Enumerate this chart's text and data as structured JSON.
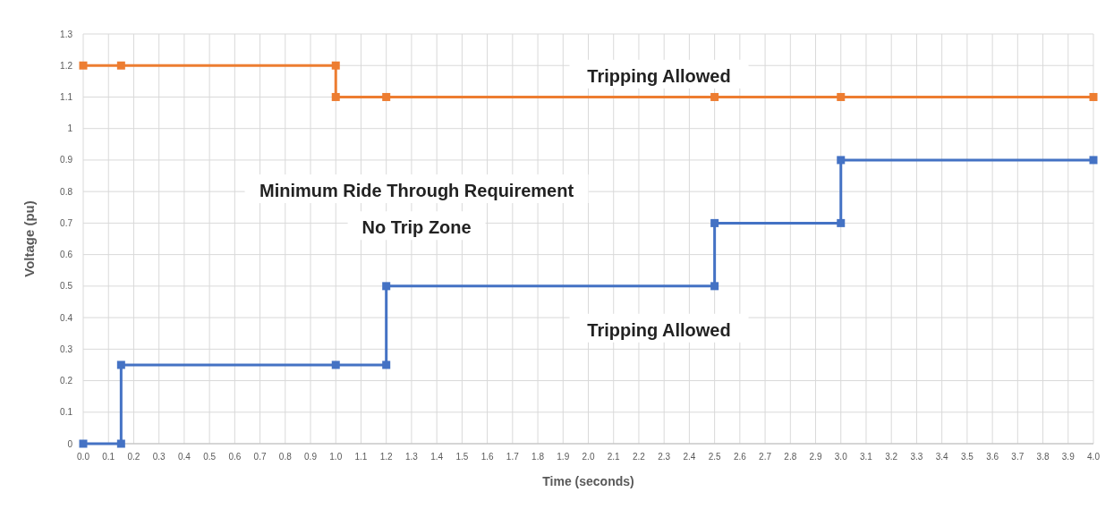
{
  "chart_data": {
    "type": "line",
    "xlabel": "Time (seconds)",
    "ylabel": "Voltage (pu)",
    "xlim": [
      0,
      4
    ],
    "xticks": [
      {
        "value": 0,
        "label": "0.0"
      },
      {
        "value": 0.1,
        "label": "0.1"
      },
      {
        "value": 0.2,
        "label": "0.2"
      },
      {
        "value": 0.3,
        "label": "0.3"
      },
      {
        "value": 0.4,
        "label": "0.4"
      },
      {
        "value": 0.5,
        "label": "0.5"
      },
      {
        "value": 0.6,
        "label": "0.6"
      },
      {
        "value": 0.7,
        "label": "0.7"
      },
      {
        "value": 0.8,
        "label": "0.8"
      },
      {
        "value": 0.9,
        "label": "0.9"
      },
      {
        "value": 1,
        "label": "1.0"
      },
      {
        "value": 1.1,
        "label": "1.1"
      },
      {
        "value": 1.2,
        "label": "1.2"
      },
      {
        "value": 1.3,
        "label": "1.3"
      },
      {
        "value": 1.4,
        "label": "1.4"
      },
      {
        "value": 1.5,
        "label": "1.5"
      },
      {
        "value": 1.6,
        "label": "1.6"
      },
      {
        "value": 1.7,
        "label": "1.7"
      },
      {
        "value": 1.8,
        "label": "1.8"
      },
      {
        "value": 1.9,
        "label": "1.9"
      },
      {
        "value": 2,
        "label": "2.0"
      },
      {
        "value": 2.1,
        "label": "2.1"
      },
      {
        "value": 2.2,
        "label": "2.2"
      },
      {
        "value": 2.3,
        "label": "2.3"
      },
      {
        "value": 2.4,
        "label": "2.4"
      },
      {
        "value": 2.5,
        "label": "2.5"
      },
      {
        "value": 2.6,
        "label": "2.6"
      },
      {
        "value": 2.7,
        "label": "2.7"
      },
      {
        "value": 2.8,
        "label": "2.8"
      },
      {
        "value": 2.9,
        "label": "2.9"
      },
      {
        "value": 3,
        "label": "3.0"
      },
      {
        "value": 3.1,
        "label": "3.1"
      },
      {
        "value": 3.2,
        "label": "3.2"
      },
      {
        "value": 3.3,
        "label": "3.3"
      },
      {
        "value": 3.4,
        "label": "3.4"
      },
      {
        "value": 3.5,
        "label": "3.5"
      },
      {
        "value": 3.6,
        "label": "3.6"
      },
      {
        "value": 3.7,
        "label": "3.7"
      },
      {
        "value": 3.8,
        "label": "3.8"
      },
      {
        "value": 3.9,
        "label": "3.9"
      },
      {
        "value": 4,
        "label": "4.0"
      }
    ],
    "ylim": [
      0,
      1.3
    ],
    "yticks": [
      0,
      0.1,
      0.2,
      0.3,
      0.4,
      0.5,
      0.6,
      0.7,
      0.8,
      0.9,
      1,
      1.1,
      1.2,
      1.3
    ],
    "grid": true,
    "marker": "square",
    "line_style": "solid",
    "series": [
      {
        "color": "#ed7d31",
        "x": [
          0,
          0.15,
          1,
          1,
          1.2,
          2.5,
          3,
          4
        ],
        "values": [
          1.2,
          1.2,
          1.2,
          1.1,
          1.1,
          1.1,
          1.1,
          1.1
        ]
      },
      {
        "color": "#4472c4",
        "x": [
          0,
          0.15,
          0.15,
          1,
          1.2,
          1.2,
          2.5,
          2.5,
          3,
          3,
          4
        ],
        "values": [
          0,
          0,
          0.25,
          0.25,
          0.25,
          0.5,
          0.5,
          0.7,
          0.7,
          0.9,
          0.9
        ]
      }
    ],
    "annotations": [
      "Tripping Allowed",
      "Minimum Ride Through Requirement",
      "No Trip Zone",
      "Tripping Allowed"
    ]
  }
}
